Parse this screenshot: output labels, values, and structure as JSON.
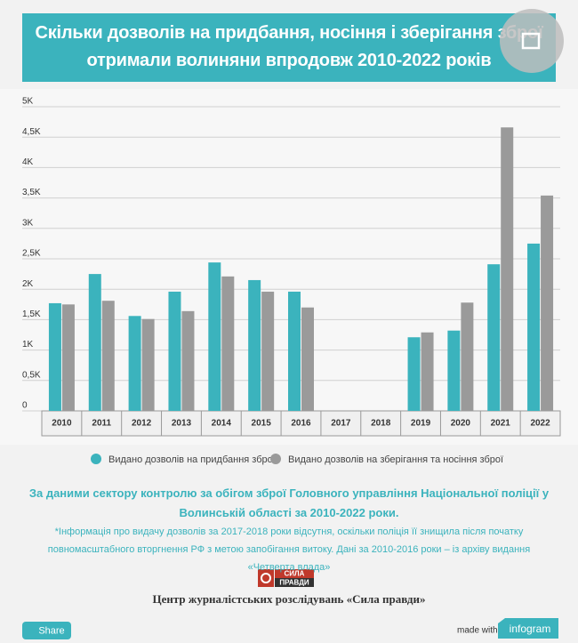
{
  "chart_data": {
    "type": "bar",
    "title": "Скільки дозволів на придбання, носіння і зберігання зброї отримали волиняни впродовж 2010-2022 років",
    "categories": [
      "2010",
      "2011",
      "2012",
      "2013",
      "2014",
      "2015",
      "2016",
      "2017",
      "2018",
      "2019",
      "2020",
      "2021",
      "2022"
    ],
    "series": [
      {
        "name": "Видано дозволів на придбання зброї",
        "color": "#3bb3bd",
        "values": [
          1770,
          2250,
          1560,
          1960,
          2440,
          2150,
          1960,
          null,
          null,
          1210,
          1320,
          2410,
          2750
        ]
      },
      {
        "name": "Видано дозволів на зберігання та носіння зброї",
        "color": "#9a9a9a",
        "values": [
          1750,
          1810,
          1510,
          1640,
          2210,
          1960,
          1700,
          null,
          null,
          1290,
          1780,
          4660,
          3540
        ]
      }
    ],
    "ylim": [
      0,
      5000
    ],
    "yticks": [
      0,
      {
        "value": 500,
        "label": "0,5K"
      },
      {
        "value": 1000,
        "label": "1K"
      },
      {
        "value": 1500,
        "label": "1,5K"
      },
      {
        "value": 2000,
        "label": "2K"
      },
      {
        "value": 2500,
        "label": "2,5K"
      },
      {
        "value": 3000,
        "label": "3K"
      },
      {
        "value": 3500,
        "label": "3,5K"
      },
      {
        "value": 4000,
        "label": "4K"
      },
      {
        "value": 4500,
        "label": "4,5K"
      },
      {
        "value": 5000,
        "label": "5K"
      }
    ],
    "grid": true
  },
  "source": "За даними сектору контролю за обігом зброї Головного управління Національної поліції у Волинській області за 2010-2022 роки.",
  "note": "*Інформація про видачу дозволів за 2017-2018 роки відсутня, оскільки поліція її знищила після початку повномасштабного вторгнення РФ з метою запобігання витоку. Дані за 2010-2016 роки – із архіву видання «Четверта влада»",
  "logo": {
    "line1": "СИЛА",
    "line2": "ПРАВДИ"
  },
  "organization": "Центр журналістських розслідувань «Сила правди»",
  "share_button": "Share",
  "made_with": "made with",
  "brand": "infogram"
}
